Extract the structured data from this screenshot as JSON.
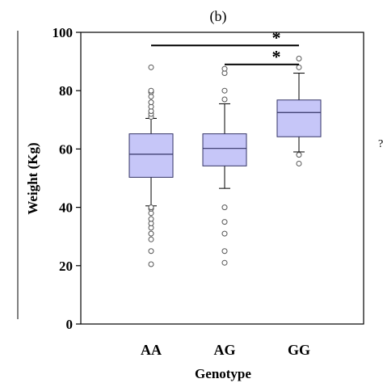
{
  "panel_label": "(b)",
  "chart_data": {
    "type": "box",
    "title": "",
    "xlabel": "Genotype",
    "ylabel": "Weight (Kg)",
    "ylim": [
      0,
      100
    ],
    "yticks": [
      0,
      20,
      40,
      60,
      80,
      100
    ],
    "categories": [
      "AA",
      "AG",
      "GG"
    ],
    "box_color": "#c6c6f8",
    "box_edge_color": "#333366",
    "grid": false,
    "boxes": [
      {
        "category": "AA",
        "whisker_low": 40.5,
        "q1": 50.3,
        "median": 58.2,
        "q3": 65.2,
        "whisker_high": 70.5,
        "outliers": [
          20.5,
          25,
          29,
          31,
          33,
          34.5,
          36,
          38,
          39.5,
          40,
          71,
          72,
          73,
          74.5,
          76,
          78,
          79.5,
          80,
          88
        ]
      },
      {
        "category": "AG",
        "whisker_low": 46.5,
        "q1": 54.2,
        "median": 60.2,
        "q3": 65.2,
        "whisker_high": 75.5,
        "outliers": [
          21,
          25,
          31,
          35,
          40,
          77,
          80,
          86,
          87.5
        ]
      },
      {
        "category": "GG",
        "whisker_low": 59,
        "q1": 64.2,
        "median": 72.5,
        "q3": 76.8,
        "whisker_high": 86,
        "outliers": [
          55,
          58,
          88,
          91
        ]
      }
    ],
    "significance": [
      {
        "from": "AA",
        "to": "GG",
        "y": 95.5,
        "label": "*"
      },
      {
        "from": "AG",
        "to": "GG",
        "y": 89,
        "label": "*"
      }
    ]
  }
}
